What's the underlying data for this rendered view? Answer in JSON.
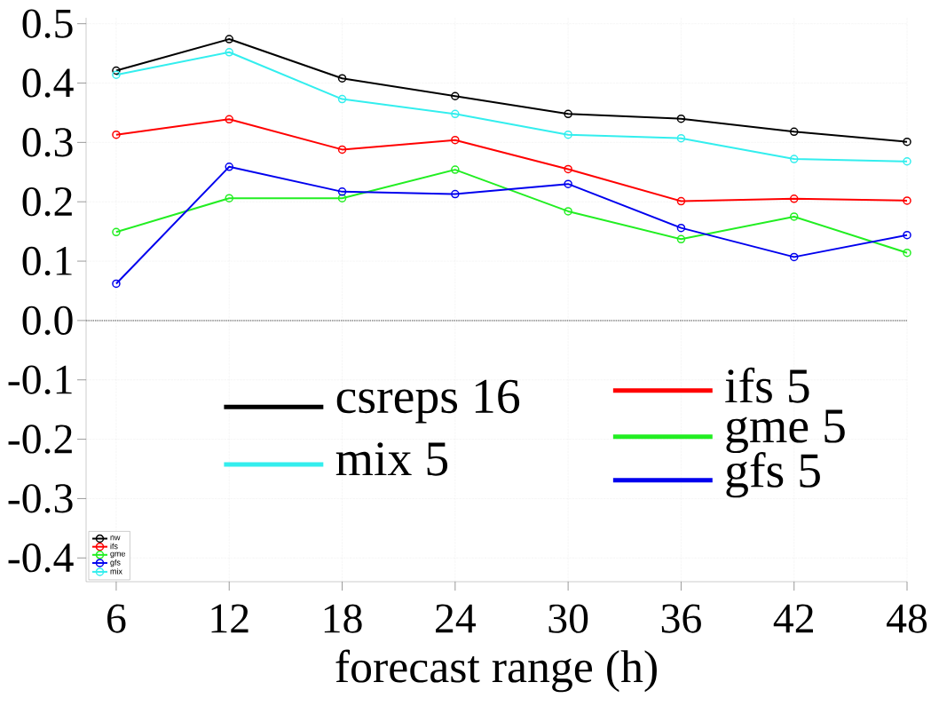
{
  "chart_data": {
    "type": "line",
    "xlabel": "forecast range (h)",
    "x": [
      6,
      12,
      18,
      24,
      30,
      36,
      42,
      48
    ],
    "series": [
      {
        "name": "nw",
        "color": "#000000",
        "values": [
          0.421,
          0.474,
          0.408,
          0.378,
          0.348,
          0.34,
          0.318,
          0.301
        ]
      },
      {
        "name": "ifs",
        "color": "#ff0000",
        "values": [
          0.313,
          0.339,
          0.288,
          0.304,
          0.255,
          0.201,
          0.205,
          0.202
        ]
      },
      {
        "name": "gme",
        "color": "#22ee22",
        "values": [
          0.149,
          0.206,
          0.206,
          0.254,
          0.184,
          0.137,
          0.175,
          0.114
        ]
      },
      {
        "name": "gfs",
        "color": "#0000ee",
        "values": [
          0.062,
          0.259,
          0.217,
          0.213,
          0.23,
          0.156,
          0.107,
          0.144
        ]
      },
      {
        "name": "mix",
        "color": "#33eeee",
        "values": [
          0.414,
          0.452,
          0.373,
          0.348,
          0.313,
          0.307,
          0.272,
          0.268
        ]
      }
    ],
    "annotations": [
      "csreps 16",
      "mix 5",
      "ifs 5",
      "gme 5",
      "gfs 5"
    ],
    "xlim": [
      4.4,
      48
    ],
    "ylim": [
      -0.44,
      0.51
    ],
    "xticks": [
      6,
      12,
      18,
      24,
      30,
      36,
      42,
      48
    ],
    "yticks": [
      -0.4,
      -0.3,
      -0.2,
      -0.1,
      {
        "value": 0,
        "label": "0.0"
      },
      0.1,
      0.2,
      0.3,
      0.4,
      0.5
    ],
    "ref_lines": [
      {
        "axis": "y",
        "value": 0,
        "color": "#888888",
        "line_style": "dotted"
      }
    ],
    "grid": true,
    "legend": "bottom left",
    "marker": "circle",
    "line_style": "solid"
  }
}
